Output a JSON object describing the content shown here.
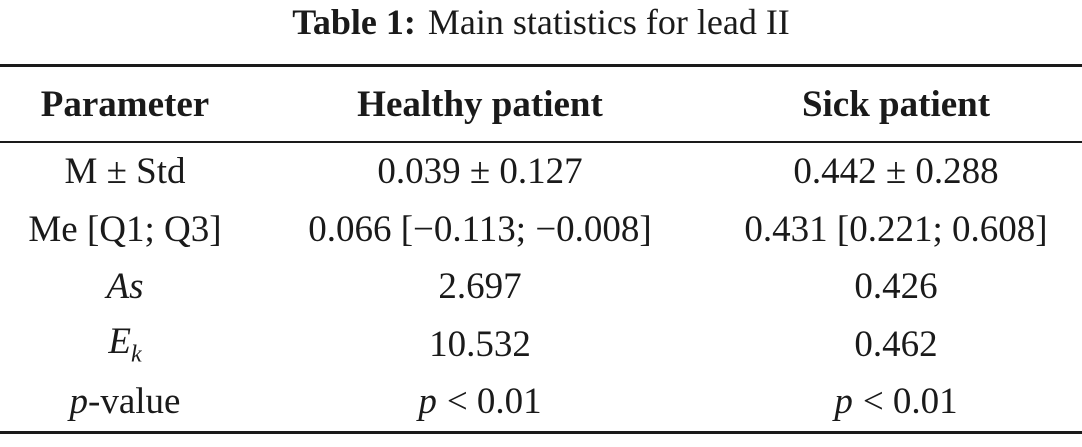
{
  "caption": {
    "label": "Table 1:",
    "text": "Main statistics for lead II"
  },
  "table": {
    "header": [
      "Parameter",
      "Healthy patient",
      "Sick patient"
    ],
    "rows": [
      [
        "M ± Std",
        "0.039 ± 0.127",
        "0.442 ± 0.288"
      ],
      [
        "Me [Q1; Q3]",
        "0.066 [−0.113; −0.008]",
        "0.431 [0.221; 0.608]"
      ],
      [
        "As",
        "2.697",
        "0.426"
      ],
      [
        [
          "E",
          "k"
        ],
        "10.532",
        "0.462"
      ],
      [
        [
          "p",
          "-value"
        ],
        [
          "p",
          "< 0.01"
        ],
        [
          "p",
          "< 0.01"
        ]
      ]
    ]
  }
}
